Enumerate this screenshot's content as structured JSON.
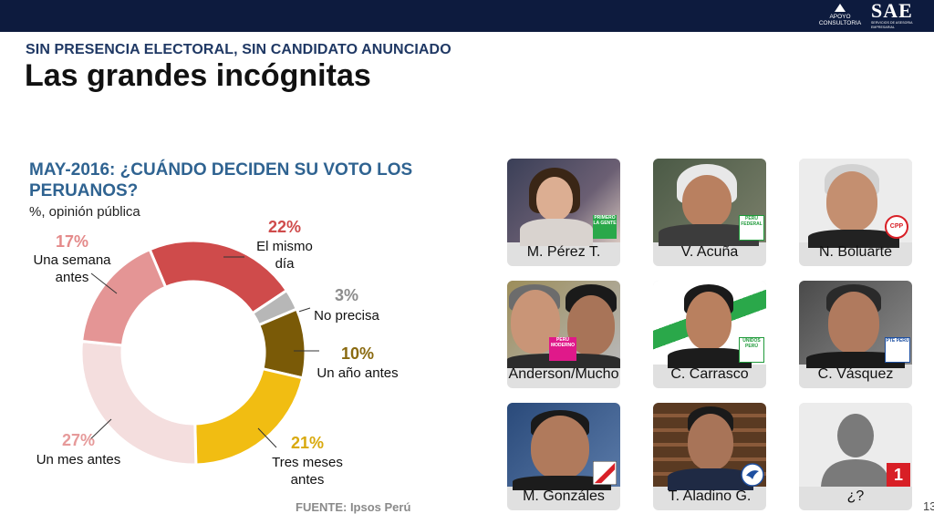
{
  "header": {
    "logo_apoyo_line1": "APOYO",
    "logo_apoyo_line2": "CONSULTORIA",
    "logo_sae_text": "SAE",
    "logo_sae_sub": "SERVICIOS DE ASESORIA EMPRESARIAL"
  },
  "slide": {
    "kicker": "SIN PRESENCIA ELECTORAL, SIN CANDIDATO ANUNCIADO",
    "title": "Las grandes incógnitas",
    "source": "FUENTE: Ipsos Perú",
    "page_number": "13"
  },
  "chart_data": {
    "type": "pie",
    "title": "MAY-2016: ¿CUÁNDO DECIDEN SU VOTO LOS PERUANOS?",
    "subtitle": "%, opinión pública",
    "slices": [
      {
        "value": 22,
        "pct_label": "22%",
        "label_lines": [
          "El mismo",
          "día"
        ],
        "color": "#cf4b4b",
        "label_color": "#cf4b4b"
      },
      {
        "value": 3,
        "pct_label": "3%",
        "label_lines": [
          "No precisa"
        ],
        "color": "#b7b7b7",
        "label_color": "#8c8c8c"
      },
      {
        "value": 10,
        "pct_label": "10%",
        "label_lines": [
          "Un año antes"
        ],
        "color": "#7a5a07",
        "label_color": "#8a6a10"
      },
      {
        "value": 21,
        "pct_label": "21%",
        "label_lines": [
          "Tres meses",
          "antes"
        ],
        "color": "#f1bd12",
        "label_color": "#d9a90d"
      },
      {
        "value": 27,
        "pct_label": "27%",
        "label_lines": [
          "Un mes antes"
        ],
        "color": "#f4dede",
        "label_color": "#e69a9a"
      },
      {
        "value": 17,
        "pct_label": "17%",
        "label_lines": [
          "Una semana",
          "antes"
        ],
        "color": "#e49595",
        "label_color": "#e48a8a"
      }
    ]
  },
  "candidates": [
    {
      "name": "M. Pérez T.",
      "badge": "PRIMERO LA GENTE",
      "badge_color": "#2aa84a"
    },
    {
      "name": "V. Acuña",
      "badge": "PERÚ FEDERAL",
      "badge_color": "#1f9a3a"
    },
    {
      "name": "N. Boluarte",
      "badge": "CPP",
      "badge_color": "#d81f26"
    },
    {
      "name": "Anderson/Mucho",
      "badge": "PERÚ MODERNO",
      "badge_color": "#e0198a"
    },
    {
      "name": "C. Carrasco",
      "badge": "UNIDOS PERÚ",
      "badge_color": "#1f9a3a"
    },
    {
      "name": "C. Vásquez",
      "badge": "PTE PERÚ",
      "badge_color": "#1d4fa0"
    },
    {
      "name": "M. Gonzáles",
      "badge": "",
      "badge_color": "#d81f26"
    },
    {
      "name": "T. Aladino G.",
      "badge": "",
      "badge_color": "#1d4fa0"
    },
    {
      "name": "¿?",
      "badge": "1",
      "badge_color": "#d81f26"
    }
  ]
}
